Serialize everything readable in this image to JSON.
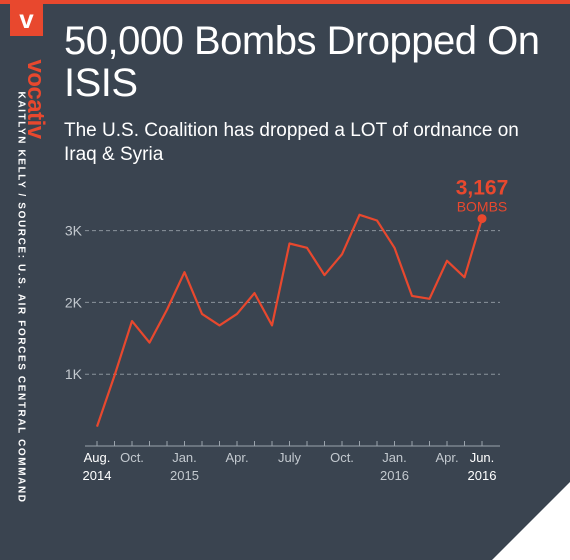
{
  "header": {
    "logo_letter": "v",
    "brand": "vocativ",
    "credit": "KAITLYN KELLY / SOURCE: U.S. AIR FORCES CENTRAL COMMAND",
    "title": "50,000 Bombs Dropped On ISIS",
    "subtitle": "The U.S. Coalition has dropped a LOT of ordnance on Iraq & Syria"
  },
  "colors": {
    "background": "#3a4450",
    "accent": "#e8482e",
    "grid": "#8a939c",
    "text": "#ffffff",
    "tick": "#c3c9cf"
  },
  "annotation": {
    "value": "3,167",
    "unit": "BOMBS"
  },
  "chart_data": {
    "type": "line",
    "title": "50,000 Bombs Dropped On ISIS",
    "xlabel": "",
    "ylabel": "",
    "ylim": [
      0,
      3500
    ],
    "yticks": [
      1000,
      2000,
      3000
    ],
    "ytick_labels": [
      "1K",
      "2K",
      "3K"
    ],
    "grid": true,
    "x": [
      "2014-08",
      "2014-09",
      "2014-10",
      "2014-11",
      "2014-12",
      "2015-01",
      "2015-02",
      "2015-03",
      "2015-04",
      "2015-05",
      "2015-06",
      "2015-07",
      "2015-08",
      "2015-09",
      "2015-10",
      "2015-11",
      "2015-12",
      "2016-01",
      "2016-02",
      "2016-03",
      "2016-04",
      "2016-05",
      "2016-06"
    ],
    "values": [
      270,
      980,
      1740,
      1440,
      1900,
      2420,
      1840,
      1680,
      1840,
      2130,
      1680,
      2820,
      2760,
      2380,
      2670,
      3220,
      3140,
      2760,
      2090,
      2050,
      2580,
      2350,
      3167
    ],
    "xtick_labels": [
      {
        "i": 0,
        "line1": "Aug.",
        "line2": "2014"
      },
      {
        "i": 2,
        "line1": "Oct.",
        "line2": ""
      },
      {
        "i": 5,
        "line1": "Jan.",
        "line2": "2015"
      },
      {
        "i": 8,
        "line1": "Apr.",
        "line2": ""
      },
      {
        "i": 11,
        "line1": "July",
        "line2": ""
      },
      {
        "i": 14,
        "line1": "Oct.",
        "line2": ""
      },
      {
        "i": 17,
        "line1": "Jan.",
        "line2": "2016"
      },
      {
        "i": 20,
        "line1": "Apr.",
        "line2": ""
      },
      {
        "i": 22,
        "line1": "Jun.",
        "line2": "2016"
      }
    ]
  }
}
